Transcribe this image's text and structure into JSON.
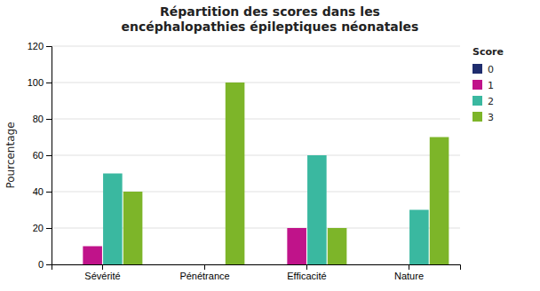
{
  "chart_data": {
    "type": "bar",
    "title": "Répartition des scores dans les\nencéphalopathies épileptiques néonatales",
    "y_label": "Pourcentage",
    "legend_title": "Score",
    "categories": [
      "Sévérité",
      "Pénétrance",
      "Efficacité",
      "Nature"
    ],
    "series": [
      {
        "name": "0",
        "color": "#1f2d6e",
        "values": [
          0,
          0,
          0,
          0
        ]
      },
      {
        "name": "1",
        "color": "#c0138a",
        "values": [
          10,
          0,
          20,
          0
        ]
      },
      {
        "name": "2",
        "color": "#3ab8a0",
        "values": [
          50,
          0,
          60,
          30
        ]
      },
      {
        "name": "3",
        "color": "#7db529",
        "values": [
          40,
          100,
          20,
          70
        ]
      }
    ],
    "ylim": [
      0,
      120
    ],
    "yticks": [
      0,
      20,
      40,
      60,
      80,
      100,
      120
    ],
    "grid": true,
    "legend": "upper right"
  }
}
